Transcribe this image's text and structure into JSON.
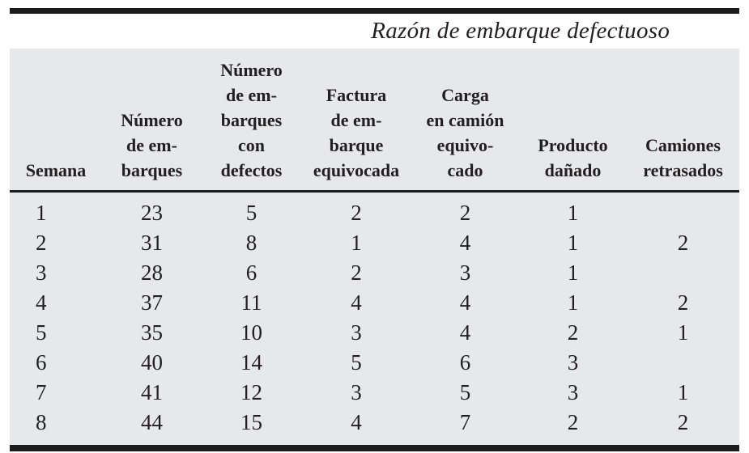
{
  "table": {
    "spanner_title": "Razón de embarque defectuoso",
    "columns": [
      {
        "label": "Semana"
      },
      {
        "label": "Número\nde em-\nbarques"
      },
      {
        "label": "Número\nde em-\nbarques\ncon\ndefectos"
      },
      {
        "label": "Factura\nde em-\nbarque\nequivocada"
      },
      {
        "label": "Carga\nen camión\nequivo-\ncado"
      },
      {
        "label": "Producto\ndañado"
      },
      {
        "label": "Camiones\nretrasados"
      }
    ],
    "rows": [
      [
        "1",
        "23",
        "5",
        "2",
        "2",
        "1",
        ""
      ],
      [
        "2",
        "31",
        "8",
        "1",
        "4",
        "1",
        "2"
      ],
      [
        "3",
        "28",
        "6",
        "2",
        "3",
        "1",
        ""
      ],
      [
        "4",
        "37",
        "11",
        "4",
        "4",
        "1",
        "2"
      ],
      [
        "5",
        "35",
        "10",
        "3",
        "4",
        "2",
        "1"
      ],
      [
        "6",
        "40",
        "14",
        "5",
        "6",
        "3",
        ""
      ],
      [
        "7",
        "41",
        "12",
        "3",
        "5",
        "3",
        "1"
      ],
      [
        "8",
        "44",
        "15",
        "4",
        "7",
        "2",
        "2"
      ]
    ],
    "colors": {
      "band_bg": "#e7e8e9",
      "ink": "#231f20",
      "rule": "#1c1c1c"
    }
  }
}
